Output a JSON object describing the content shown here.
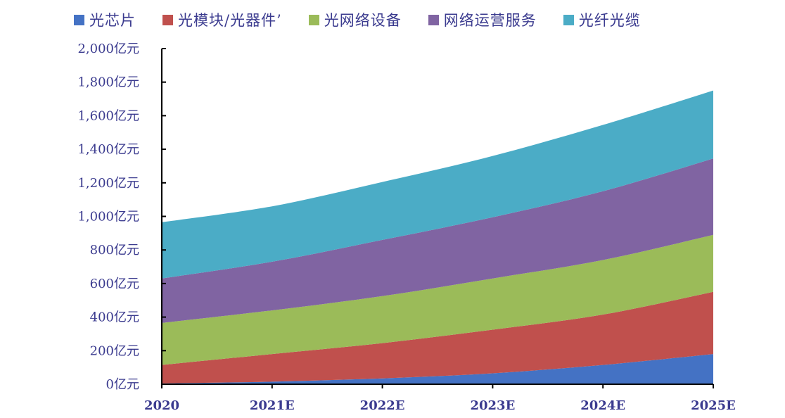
{
  "chart_data": {
    "type": "area",
    "stacked": true,
    "title": "",
    "xlabel": "",
    "ylabel": "",
    "y_unit_suffix": "亿元",
    "categories": [
      "2020",
      "2021E",
      "2022E",
      "2023E",
      "2024E",
      "2025E"
    ],
    "ylim": [
      0,
      2000
    ],
    "yticks": [
      0,
      200,
      400,
      600,
      800,
      1000,
      1200,
      1400,
      1600,
      1800,
      2000
    ],
    "ytick_labels": [
      "0亿元",
      "200亿元",
      "400亿元",
      "600亿元",
      "800亿元",
      "1,000亿元",
      "1,200亿元",
      "1,400亿元",
      "1,600亿元",
      "1,800亿元",
      "2,000亿元"
    ],
    "legend_position": "top",
    "grid": false,
    "series": [
      {
        "name": "光芯片",
        "color": "#4472c4",
        "values": [
          5,
          15,
          35,
          65,
          115,
          180
        ]
      },
      {
        "name": "光模块/光器件’",
        "color": "#c0504d",
        "values": [
          110,
          165,
          210,
          260,
          300,
          370
        ]
      },
      {
        "name": "光网络设备",
        "color": "#9bbb59",
        "values": [
          250,
          260,
          280,
          305,
          325,
          340
        ]
      },
      {
        "name": "网络运营服务",
        "color": "#8064a2",
        "values": [
          265,
          290,
          335,
          365,
          410,
          455
        ]
      },
      {
        "name": "光纤光缆",
        "color": "#4bacc6",
        "values": [
          335,
          330,
          345,
          365,
          395,
          405
        ]
      }
    ]
  }
}
